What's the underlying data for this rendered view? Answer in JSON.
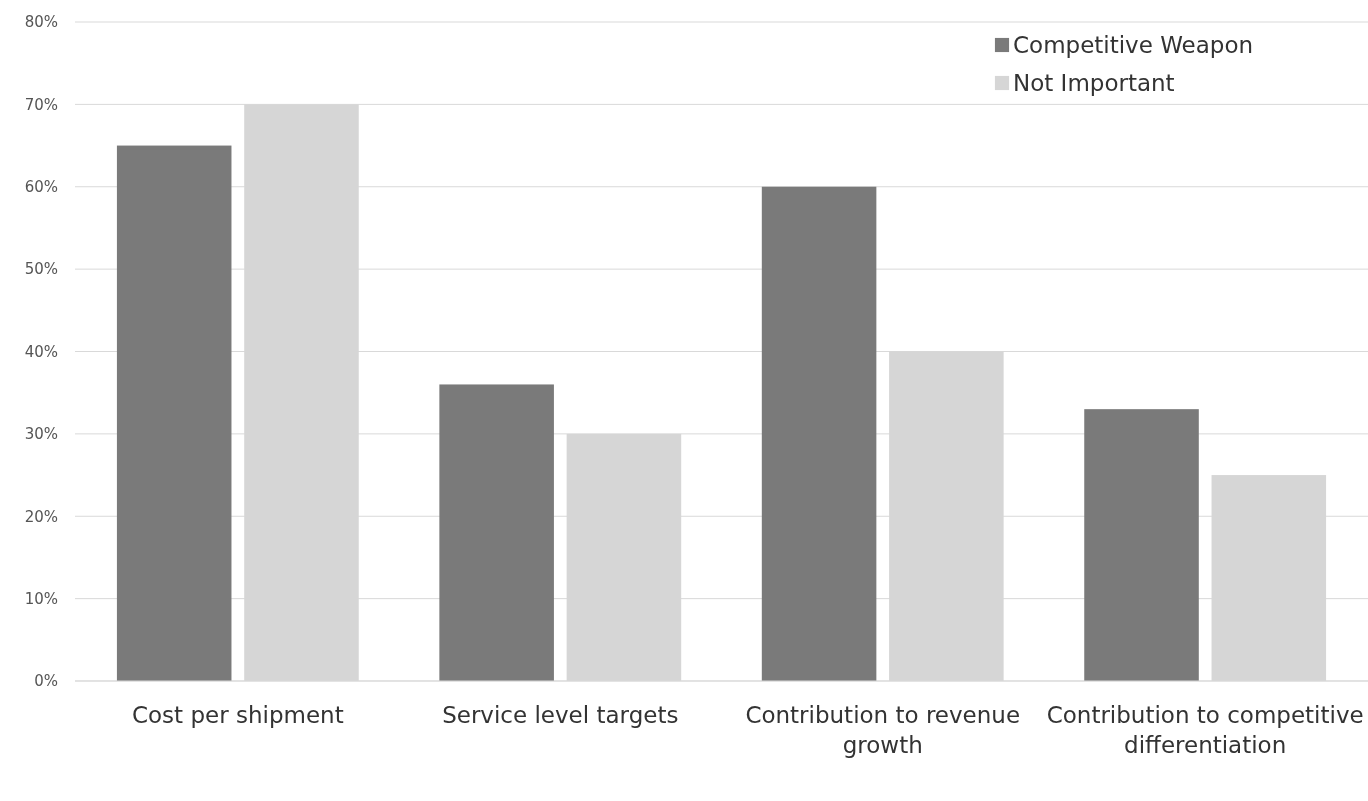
{
  "chart_data": {
    "type": "bar",
    "categories": [
      "Cost per shipment",
      "Service level targets",
      "Contribution to revenue growth",
      "Contribution to competitive differentiation"
    ],
    "series": [
      {
        "name": "Competitive Weapon",
        "color": "#7a7a7a",
        "values": [
          65,
          36,
          60,
          33
        ]
      },
      {
        "name": "Not Important",
        "color": "#d6d6d6",
        "values": [
          70,
          30,
          40,
          25
        ]
      }
    ],
    "ylim": [
      0,
      80
    ],
    "yticks": [
      {
        "value": 0,
        "label": "0%"
      },
      {
        "value": 10,
        "label": "10%"
      },
      {
        "value": 20,
        "label": "20%"
      },
      {
        "value": 30,
        "label": "30%"
      },
      {
        "value": 40,
        "label": "40%"
      },
      {
        "value": 50,
        "label": "50%"
      },
      {
        "value": 60,
        "label": "60%"
      },
      {
        "value": 70,
        "label": "70%"
      },
      {
        "value": 80,
        "label": "80%"
      }
    ],
    "grid": "y",
    "legend": "top right",
    "marker": "square"
  }
}
